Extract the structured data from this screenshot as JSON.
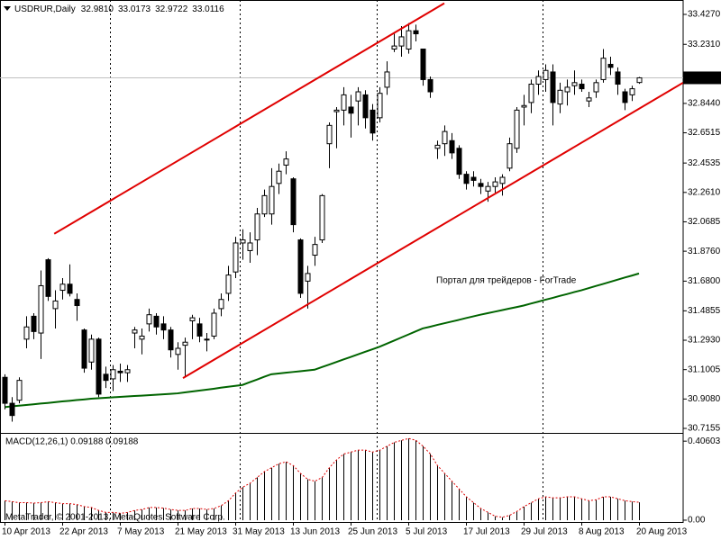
{
  "chart_data": [
    {
      "type": "candlestick",
      "title": "USDRUR,Daily",
      "last_values": [
        {
          "value": 32.981,
          "label": "32.9810"
        },
        {
          "value": 33.0173,
          "label": "33.0173"
        },
        {
          "value": 32.9722,
          "label": "32.9722"
        },
        {
          "value": 33.0116,
          "label": "33.0116"
        }
      ],
      "categories": [
        "10 Apr 2013",
        null,
        null,
        null,
        null,
        null,
        null,
        null,
        "22 Apr 2013",
        null,
        null,
        null,
        null,
        null,
        null,
        null,
        "7 May 2013",
        null,
        null,
        null,
        null,
        null,
        null,
        null,
        "21 May 2013",
        null,
        null,
        null,
        null,
        null,
        null,
        null,
        "31 May 2013",
        null,
        null,
        null,
        null,
        null,
        null,
        null,
        "13 Jun 2013",
        null,
        null,
        null,
        null,
        null,
        null,
        null,
        "25 Jun 2013",
        null,
        null,
        null,
        null,
        null,
        null,
        null,
        "5 Jul 2013",
        null,
        null,
        null,
        null,
        null,
        null,
        null,
        "17 Jul 2013",
        null,
        null,
        null,
        null,
        null,
        null,
        null,
        "29 Jul 2013",
        null,
        null,
        null,
        null,
        null,
        null,
        null,
        "8 Aug 2013",
        null,
        null,
        null,
        null,
        null,
        null,
        null,
        "20 Aug 2013"
      ],
      "open": [
        31.05,
        30.88,
        30.9,
        31.3,
        31.45,
        31.34,
        31.82,
        31.5,
        31.62,
        31.66,
        31.56,
        31.36,
        31.15,
        31.3,
        31.07,
        31.04,
        31.09,
        31.08,
        31.34,
        31.3,
        31.4,
        31.45,
        31.4,
        31.36,
        31.2,
        31.26,
        31.42,
        31.4,
        31.3,
        31.32,
        31.5,
        31.6,
        31.74,
        31.93,
        31.88,
        31.95,
        32.12,
        32.12,
        32.32,
        32.44,
        32.35,
        31.95,
        31.68,
        31.85,
        31.95,
        32.58,
        32.79,
        32.8,
        32.82,
        32.86,
        32.9,
        32.8,
        32.75,
        32.95,
        33.2,
        33.22,
        33.2,
        33.32,
        33.2,
        33.0,
        32.55,
        32.58,
        32.6,
        32.55,
        32.38,
        32.36,
        32.32,
        32.27,
        32.3,
        32.32,
        32.42,
        32.55,
        32.82,
        32.85,
        32.97,
        33.0,
        33.05,
        32.84,
        32.92,
        32.96,
        32.97,
        32.86,
        32.92,
        33.0,
        33.1,
        33.05,
        32.92,
        32.9,
        32.981
      ],
      "high": [
        31.07,
        30.92,
        31.05,
        31.45,
        31.47,
        31.75,
        31.83,
        31.62,
        31.7,
        31.79,
        31.6,
        31.37,
        31.33,
        31.31,
        31.12,
        31.13,
        31.14,
        31.13,
        31.38,
        31.37,
        31.5,
        31.47,
        31.45,
        31.38,
        31.28,
        31.31,
        31.46,
        31.44,
        31.34,
        31.5,
        31.6,
        31.78,
        31.97,
        32.02,
        32.0,
        32.16,
        32.28,
        32.42,
        32.45,
        32.53,
        32.36,
        31.96,
        31.78,
        31.97,
        32.25,
        32.72,
        32.82,
        32.95,
        32.9,
        32.95,
        32.93,
        32.84,
        32.95,
        33.12,
        33.3,
        33.35,
        33.37,
        33.36,
        33.2,
        33.02,
        32.6,
        32.7,
        32.65,
        32.57,
        32.4,
        32.4,
        32.35,
        32.33,
        32.36,
        32.38,
        32.62,
        32.82,
        32.9,
        33.0,
        33.06,
        33.1,
        33.1,
        32.98,
        33.0,
        33.06,
        33.0,
        32.92,
        33.0,
        33.2,
        33.15,
        33.08,
        32.94,
        32.96,
        33.0173
      ],
      "low": [
        30.84,
        30.76,
        30.88,
        31.24,
        31.3,
        31.17,
        31.55,
        31.37,
        31.56,
        31.58,
        31.42,
        31.08,
        31.1,
        30.92,
        30.98,
        30.96,
        31.02,
        31.02,
        31.24,
        31.2,
        31.35,
        31.33,
        31.3,
        31.18,
        31.1,
        31.05,
        31.3,
        31.28,
        31.22,
        31.3,
        31.45,
        31.55,
        31.7,
        31.82,
        31.8,
        31.85,
        32.1,
        32.05,
        32.25,
        32.38,
        32.0,
        31.57,
        31.5,
        31.78,
        31.93,
        32.42,
        32.55,
        32.7,
        32.62,
        32.7,
        32.68,
        32.6,
        32.72,
        32.9,
        33.18,
        33.15,
        33.17,
        33.25,
        32.96,
        32.88,
        32.48,
        32.5,
        32.48,
        32.35,
        32.28,
        32.3,
        32.25,
        32.2,
        32.26,
        32.24,
        32.4,
        32.52,
        32.7,
        32.78,
        32.9,
        32.92,
        32.7,
        32.78,
        32.83,
        32.9,
        32.92,
        32.82,
        32.88,
        32.98,
        33.03,
        32.9,
        32.8,
        32.86,
        32.9722
      ],
      "close": [
        30.88,
        30.8,
        31.03,
        31.38,
        31.35,
        31.65,
        31.58,
        31.55,
        31.66,
        31.6,
        31.52,
        31.11,
        31.3,
        30.94,
        31.03,
        31.1,
        31.08,
        31.1,
        31.36,
        31.32,
        31.46,
        31.38,
        31.36,
        31.23,
        31.24,
        31.28,
        31.44,
        31.32,
        31.3,
        31.47,
        31.56,
        31.72,
        31.93,
        31.95,
        31.93,
        32.12,
        32.24,
        32.3,
        32.4,
        32.48,
        32.05,
        31.6,
        31.73,
        31.92,
        32.24,
        32.7,
        32.8,
        32.9,
        32.78,
        32.92,
        32.75,
        32.65,
        32.91,
        33.05,
        33.22,
        33.28,
        33.32,
        33.3,
        33.0,
        32.92,
        32.57,
        32.66,
        32.52,
        32.38,
        32.32,
        32.34,
        32.3,
        32.3,
        32.33,
        32.36,
        32.58,
        32.8,
        32.83,
        32.97,
        33.02,
        33.06,
        32.85,
        32.93,
        32.95,
        32.98,
        32.94,
        32.88,
        32.98,
        33.14,
        33.08,
        32.97,
        32.85,
        32.94,
        33.0116
      ],
      "overlays": [
        {
          "color": "#006400",
          "values": [
            30.855,
            30.86,
            30.864,
            30.869,
            30.873,
            30.878,
            30.882,
            30.887,
            30.892,
            30.896,
            30.901,
            30.905,
            30.91,
            30.913,
            30.916,
            30.919,
            30.922,
            30.925,
            30.928,
            30.93,
            30.933,
            30.936,
            30.939,
            30.942,
            30.945,
            30.951,
            30.957,
            30.963,
            30.969,
            30.975,
            30.982,
            30.988,
            30.994,
            31.0,
            31.018,
            31.035,
            31.053,
            31.07,
            31.075,
            31.08,
            31.085,
            31.09,
            31.095,
            31.1,
            31.117,
            31.133,
            31.15,
            31.167,
            31.183,
            31.2,
            31.217,
            31.233,
            31.25,
            31.27,
            31.29,
            31.31,
            31.33,
            31.35,
            31.37,
            31.381,
            31.393,
            31.404,
            31.415,
            31.426,
            31.438,
            31.449,
            31.46,
            31.47,
            31.48,
            31.49,
            31.5,
            31.51,
            31.52,
            31.533,
            31.545,
            31.558,
            31.57,
            31.583,
            31.595,
            31.608,
            31.62,
            31.634,
            31.648,
            31.661,
            31.675,
            31.689,
            31.703,
            31.716,
            31.73
          ]
        }
      ],
      "trendlines": [
        {
          "color": "#e00000",
          "x": [
            6.9,
            61
          ],
          "y": [
            31.99,
            33.5
          ]
        },
        {
          "color": "#e00000",
          "x": [
            24.75,
            94.1
          ],
          "y": [
            31.045,
            32.979
          ]
        }
      ],
      "ylim": [
        30.6919,
        33.5213
      ],
      "yticks": [
        {
          "value": 33.427,
          "label": "33.4270"
        },
        {
          "value": 33.231,
          "label": "33.2310"
        },
        {
          "value": 32.844,
          "label": "32.8440"
        },
        32.6515,
        32.4535,
        {
          "value": 32.261,
          "label": "32.2610"
        },
        32.0685,
        {
          "value": 31.876,
          "label": "31.8760"
        },
        {
          "value": 31.68,
          "label": "31.6800"
        },
        31.4855,
        {
          "value": 31.293,
          "label": "31.2930"
        },
        31.1005,
        {
          "value": 30.908,
          "label": "30.9080"
        },
        30.7155
      ],
      "watermark": "Портал для трейдеров - ForTrade"
    },
    {
      "type": "bar",
      "title": "MACD(12,26,1) 0.09188 0.09188",
      "color": "#000000",
      "signal_color": "#e00000",
      "values": [
        0.1,
        0.095,
        0.09,
        0.09,
        0.088,
        0.09,
        0.095,
        0.09,
        0.085,
        0.085,
        0.08,
        0.07,
        0.065,
        0.05,
        0.04,
        0.04,
        0.035,
        0.04,
        0.05,
        0.055,
        0.065,
        0.065,
        0.062,
        0.055,
        0.05,
        0.05,
        0.06,
        0.06,
        0.055,
        0.06,
        0.075,
        0.1,
        0.14,
        0.17,
        0.19,
        0.22,
        0.25,
        0.27,
        0.29,
        0.3,
        0.28,
        0.24,
        0.21,
        0.2,
        0.22,
        0.27,
        0.31,
        0.34,
        0.35,
        0.36,
        0.36,
        0.35,
        0.36,
        0.38,
        0.4,
        0.41,
        0.42,
        0.41,
        0.38,
        0.34,
        0.28,
        0.24,
        0.2,
        0.16,
        0.12,
        0.09,
        0.06,
        0.04,
        0.02,
        0.015,
        0.025,
        0.045,
        0.07,
        0.09,
        0.11,
        0.12,
        0.115,
        0.115,
        0.12,
        0.12,
        0.11,
        0.1,
        0.105,
        0.12,
        0.12,
        0.11,
        0.1,
        0.095,
        0.09188
      ],
      "ylim": [
        -0.0094,
        0.4438
      ],
      "yticks": [
        0.40603,
        {
          "value": 0,
          "label": "0.00"
        }
      ],
      "copyright": "MetaTrader, © 2001-2013, MetaQuotes Software Corp."
    }
  ]
}
